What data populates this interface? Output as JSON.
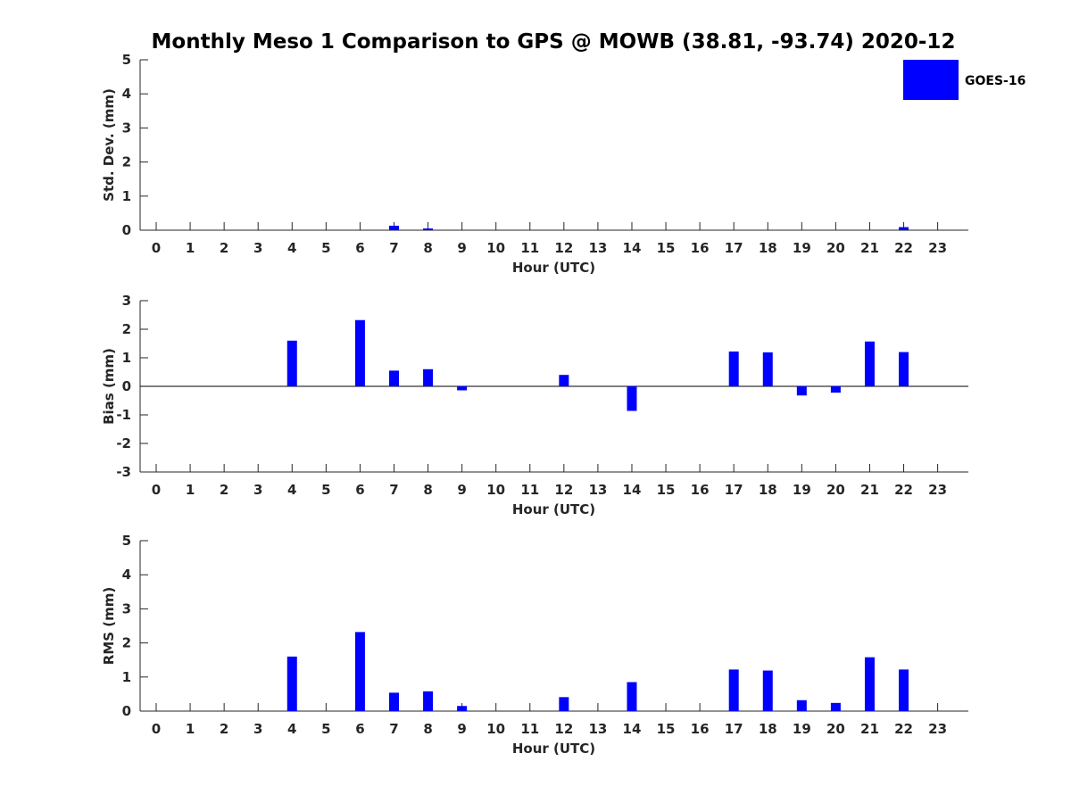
{
  "title": "Monthly Meso 1 Comparison to GPS @ MOWB (38.81, -93.74) 2020-12",
  "legend": {
    "label": "GOES-16",
    "color": "#0000ff",
    "placement": "top-right"
  },
  "chart_data": [
    {
      "type": "bar",
      "title": "",
      "xlabel": "Hour (UTC)",
      "ylabel": "Std. Dev. (mm)",
      "categories": [
        "0",
        "1",
        "2",
        "3",
        "4",
        "5",
        "6",
        "7",
        "8",
        "9",
        "10",
        "11",
        "12",
        "13",
        "14",
        "15",
        "16",
        "17",
        "18",
        "19",
        "20",
        "21",
        "22",
        "23"
      ],
      "yticks": [
        "0",
        "1",
        "2",
        "3",
        "4",
        "5"
      ],
      "ylim": [
        0,
        5
      ],
      "grid": false,
      "series": [
        {
          "name": "GOES-16",
          "values": [
            0,
            0,
            0,
            0,
            0,
            0,
            0,
            0.13,
            0.05,
            0,
            0,
            0,
            0,
            0,
            0,
            0,
            0,
            0,
            0,
            0,
            0,
            0,
            0.09,
            0
          ]
        }
      ]
    },
    {
      "type": "bar",
      "title": "",
      "xlabel": "Hour (UTC)",
      "ylabel": "Bias (mm)",
      "categories": [
        "0",
        "1",
        "2",
        "3",
        "4",
        "5",
        "6",
        "7",
        "8",
        "9",
        "10",
        "11",
        "12",
        "13",
        "14",
        "15",
        "16",
        "17",
        "18",
        "19",
        "20",
        "21",
        "22",
        "23"
      ],
      "yticks": [
        "-3",
        "-2",
        "-1",
        "0",
        "1",
        "2",
        "3"
      ],
      "ylim": [
        -3,
        3
      ],
      "grid": false,
      "zero_line": true,
      "series": [
        {
          "name": "GOES-16",
          "values": [
            0,
            0,
            0,
            0,
            1.6,
            0,
            2.32,
            0.55,
            0.6,
            -0.14,
            0,
            0,
            0.4,
            0,
            -0.86,
            0,
            0,
            1.22,
            1.19,
            -0.32,
            -0.22,
            1.57,
            1.2,
            0
          ]
        }
      ]
    },
    {
      "type": "bar",
      "title": "",
      "xlabel": "Hour (UTC)",
      "ylabel": "RMS (mm)",
      "categories": [
        "0",
        "1",
        "2",
        "3",
        "4",
        "5",
        "6",
        "7",
        "8",
        "9",
        "10",
        "11",
        "12",
        "13",
        "14",
        "15",
        "16",
        "17",
        "18",
        "19",
        "20",
        "21",
        "22",
        "23"
      ],
      "yticks": [
        "0",
        "1",
        "2",
        "3",
        "4",
        "5"
      ],
      "ylim": [
        0,
        5
      ],
      "grid": false,
      "series": [
        {
          "name": "GOES-16",
          "values": [
            0,
            0,
            0,
            0,
            1.6,
            0,
            2.32,
            0.54,
            0.58,
            0.15,
            0,
            0,
            0.41,
            0,
            0.85,
            0,
            0,
            1.22,
            1.19,
            0.32,
            0.24,
            1.58,
            1.22,
            0
          ]
        }
      ]
    }
  ]
}
